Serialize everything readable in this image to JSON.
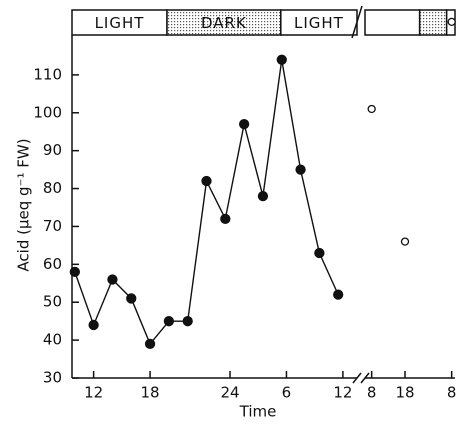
{
  "chart_data": {
    "type": "line",
    "xlabel": "Time",
    "ylabel": "Acid (µeq g⁻¹ FW)",
    "ylim": [
      30,
      120
    ],
    "yticks": [
      30,
      40,
      50,
      60,
      70,
      80,
      90,
      100,
      110
    ],
    "xaxes": [
      {
        "xlim": [
          9.7,
          40
        ],
        "xticks": [
          12,
          18,
          {
            "value": 26.5,
            "label": "24"
          },
          {
            "value": 32.5,
            "label": "6"
          },
          {
            "value": 38.5,
            "label": "12"
          }
        ]
      },
      {
        "xlim": [
          6,
          33
        ],
        "xticks": [
          8,
          18,
          {
            "value": 32,
            "label": "8"
          }
        ]
      }
    ],
    "bands": [
      {
        "xaxis": 0,
        "start": 9.7,
        "end": 19.8,
        "dark": false,
        "label": "LIGHT"
      },
      {
        "xaxis": 0,
        "start": 19.8,
        "end": 31.9,
        "dark": true,
        "label": "DARK"
      },
      {
        "xaxis": 0,
        "start": 31.9,
        "end": 40,
        "dark": false,
        "label": "LIGHT"
      },
      {
        "xaxis": 1,
        "start": 6,
        "end": 22.4,
        "dark": false
      },
      {
        "xaxis": 1,
        "start": 22.4,
        "end": 30.5,
        "dark": true
      },
      {
        "xaxis": 1,
        "start": 30.5,
        "end": 33,
        "dark": false
      }
    ],
    "series": [
      {
        "xaxis": 0,
        "marker": "filled",
        "line": true,
        "color": "#111111",
        "x": [
          10,
          12,
          14,
          16,
          18,
          20,
          22,
          24,
          26,
          28,
          30,
          32,
          34,
          36,
          38
        ],
        "values": [
          58,
          44,
          56,
          51,
          39,
          45,
          45,
          82,
          72,
          97,
          78,
          114,
          85,
          63,
          52
        ]
      },
      {
        "xaxis": 1,
        "marker": "open",
        "line": false,
        "color": "#111111",
        "x": [
          8,
          18,
          32
        ],
        "values": [
          101,
          66,
          124
        ]
      }
    ]
  }
}
